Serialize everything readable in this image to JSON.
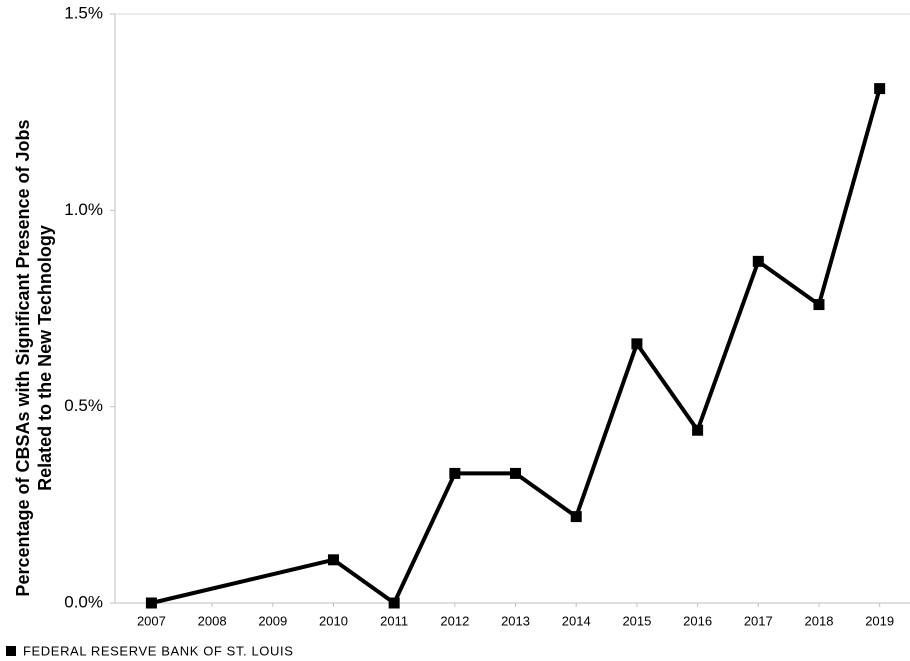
{
  "chart_data": {
    "type": "line",
    "y_label": [
      "Percentage of CBSAs with Significant Presence of Jobs",
      "Related to the New Technology"
    ],
    "x": [
      2007,
      2010,
      2011,
      2012,
      2013,
      2014,
      2015,
      2016,
      2017,
      2018,
      2019
    ],
    "series": [
      {
        "color": "#000000",
        "values": [
          0,
          0.11,
          0,
          0.33,
          0.33,
          0.22,
          0.66,
          0.44,
          0.87,
          0.76,
          1.31
        ]
      }
    ],
    "xlim": [
      2006.4,
      2019.5
    ],
    "xticks": [
      2007,
      2008,
      2009,
      2010,
      2011,
      2012,
      2013,
      2014,
      2015,
      2016,
      2017,
      2018,
      2019
    ],
    "ylim": [
      0,
      1.5
    ],
    "yticks": [
      {
        "value": 0,
        "label": "0.0%"
      },
      {
        "value": 0.5,
        "label": "0.5%"
      },
      {
        "value": 1,
        "label": "1.0%"
      },
      {
        "value": 1.5,
        "label": "1.5%"
      }
    ],
    "grid": false,
    "source": "FEDERAL RESERVE BANK OF ST. LOUIS"
  }
}
